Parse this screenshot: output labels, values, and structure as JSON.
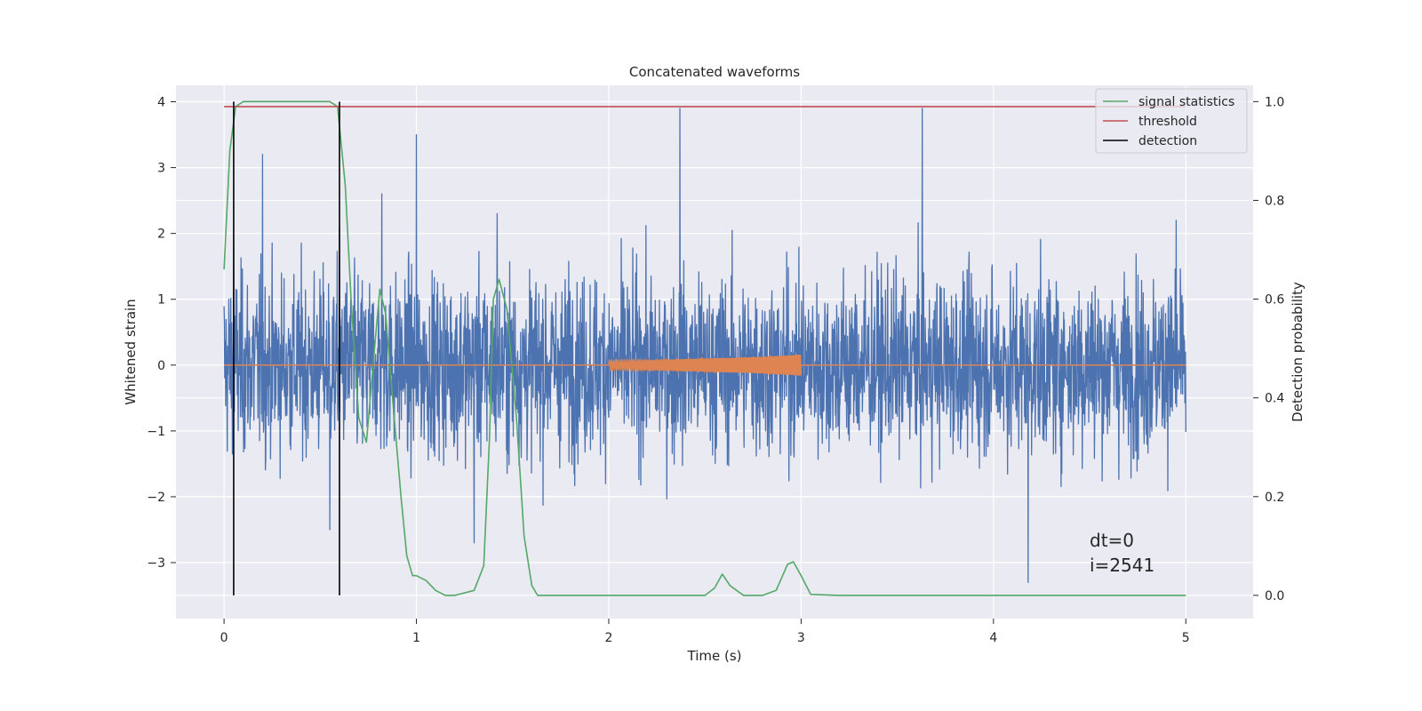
{
  "chart_data": {
    "type": "line",
    "title": "Concatenated waveforms",
    "xlabel": "Time (s)",
    "ylabel": "Whitened strain",
    "y2label": "Detection probability",
    "xlim": [
      -0.25,
      5.35
    ],
    "ylim": [
      -3.85,
      4.25
    ],
    "y2lim": [
      -0.047,
      1.033
    ],
    "xticks": [
      0,
      1,
      2,
      3,
      4,
      5
    ],
    "xtick_labels": [
      "0",
      "1",
      "2",
      "3",
      "4",
      "5"
    ],
    "yticks": [
      -3,
      -2,
      -1,
      0,
      1,
      2,
      3,
      4
    ],
    "ytick_labels": [
      "−3",
      "−2",
      "−1",
      "0",
      "1",
      "2",
      "3",
      "4"
    ],
    "y2ticks": [
      0.0,
      0.2,
      0.4,
      0.6,
      0.8,
      1.0
    ],
    "y2tick_labels": [
      "0.0",
      "0.2",
      "0.4",
      "0.6",
      "0.8",
      "1.0"
    ],
    "grid": true,
    "legend_position": "top-right",
    "legend": [
      "signal statistics",
      "threshold",
      "detection"
    ],
    "series": [
      {
        "name": "",
        "axis": "left",
        "color": "#4c72b0",
        "description_values": "whitened noise trace, approx. uniform spread",
        "x_range": [
          0,
          5
        ],
        "y_typical_range": [
          -2.0,
          2.0
        ],
        "peaks_x": [
          0.05,
          0.2,
          0.55,
          0.6,
          0.82,
          1.0,
          1.3,
          1.42,
          2.37,
          3.63,
          4.18,
          4.95
        ],
        "peaks_y": [
          1.9,
          3.2,
          -2.5,
          2.1,
          2.6,
          3.5,
          -2.7,
          2.3,
          3.9,
          3.9,
          -3.3,
          2.2
        ]
      },
      {
        "name": "",
        "axis": "left",
        "color": "#dd8452",
        "description_values": "injected chirp, zero outside 2–3 s",
        "x": [
          0,
          2,
          2.25,
          2.5,
          2.75,
          3.0,
          3.001,
          5
        ],
        "amplitude": [
          0,
          0.07,
          0.08,
          0.1,
          0.12,
          0.16,
          0,
          0
        ]
      },
      {
        "name": "signal statistics",
        "axis": "right",
        "color": "#55a868",
        "x": [
          0.0,
          0.03,
          0.06,
          0.1,
          0.2,
          0.4,
          0.55,
          0.59,
          0.63,
          0.66,
          0.7,
          0.74,
          0.78,
          0.81,
          0.84,
          0.88,
          0.92,
          0.95,
          0.98,
          1.0,
          1.05,
          1.1,
          1.15,
          1.2,
          1.3,
          1.35,
          1.38,
          1.4,
          1.43,
          1.47,
          1.52,
          1.56,
          1.6,
          1.63,
          1.7,
          2.0,
          2.5,
          2.55,
          2.59,
          2.63,
          2.7,
          2.8,
          2.87,
          2.93,
          2.96,
          3.0,
          3.05,
          3.2,
          4.0,
          5.0
        ],
        "y": [
          0.66,
          0.9,
          0.99,
          1.0,
          1.0,
          1.0,
          1.0,
          0.99,
          0.83,
          0.6,
          0.36,
          0.31,
          0.49,
          0.62,
          0.57,
          0.38,
          0.2,
          0.08,
          0.04,
          0.04,
          0.03,
          0.01,
          0.0,
          0.0,
          0.01,
          0.06,
          0.32,
          0.6,
          0.64,
          0.58,
          0.36,
          0.12,
          0.02,
          0.0,
          0.0,
          0.0,
          0.0,
          0.015,
          0.043,
          0.02,
          0.0,
          0.0,
          0.01,
          0.063,
          0.068,
          0.04,
          0.002,
          0.0,
          0.0,
          0.0
        ]
      },
      {
        "name": "threshold",
        "axis": "right",
        "color": "#c44e52",
        "x": [
          0,
          5
        ],
        "y": [
          0.99,
          0.99
        ]
      },
      {
        "name": "detection",
        "axis": "right",
        "color": "#000000",
        "x": [
          0.05,
          0.6
        ],
        "y_range": [
          0.0,
          1.0
        ]
      }
    ],
    "annotations": [
      "dt=0",
      "i=2541"
    ]
  }
}
